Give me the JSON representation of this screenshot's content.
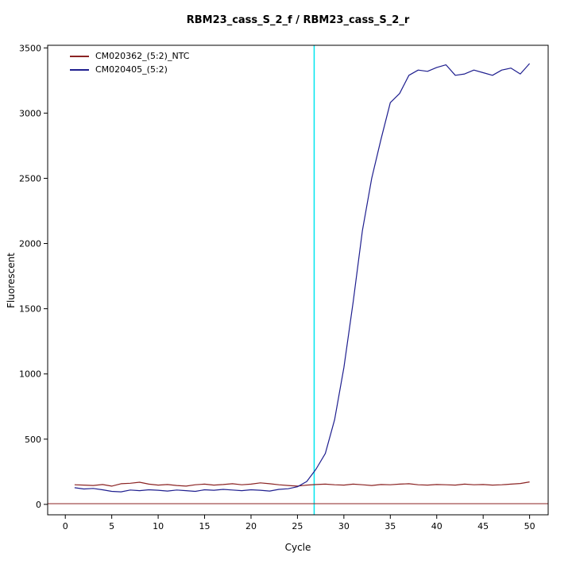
{
  "chart_data": {
    "type": "line",
    "title": "RBM23_cass_S_2_f / RBM23_cass_S_2_r",
    "xlabel": "Cycle",
    "ylabel": "Fluorescent",
    "xlim": [
      -1.9,
      52
    ],
    "ylim": [
      -80,
      3520
    ],
    "xticks": [
      0,
      5,
      10,
      15,
      20,
      25,
      30,
      35,
      40,
      45,
      50
    ],
    "yticks": [
      0,
      500,
      1000,
      1500,
      2000,
      2500,
      3000,
      3500
    ],
    "grid": false,
    "legend_position": "top-left",
    "x": [
      1,
      2,
      3,
      4,
      5,
      6,
      7,
      8,
      9,
      10,
      11,
      12,
      13,
      14,
      15,
      16,
      17,
      18,
      19,
      20,
      21,
      22,
      23,
      24,
      25,
      26,
      27,
      28,
      29,
      30,
      31,
      32,
      33,
      34,
      35,
      36,
      37,
      38,
      39,
      40,
      41,
      42,
      43,
      44,
      45,
      46,
      47,
      48,
      49,
      50
    ],
    "series": [
      {
        "name": "CM020362_(5:2)_NTC",
        "color": "#8b2323",
        "values": [
          150,
          148,
          145,
          152,
          140,
          158,
          162,
          170,
          155,
          148,
          152,
          145,
          140,
          150,
          155,
          148,
          152,
          158,
          150,
          155,
          165,
          158,
          150,
          145,
          140,
          148,
          152,
          155,
          150,
          148,
          155,
          150,
          145,
          152,
          150,
          155,
          158,
          150,
          148,
          152,
          150,
          148,
          155,
          150,
          152,
          148,
          150,
          155,
          160,
          172
        ]
      },
      {
        "name": "CM020405_(5:2)",
        "color": "#1f1f8f",
        "values": [
          128,
          118,
          122,
          112,
          100,
          96,
          110,
          105,
          112,
          108,
          102,
          110,
          105,
          100,
          112,
          108,
          115,
          110,
          105,
          112,
          108,
          102,
          115,
          120,
          135,
          175,
          270,
          390,
          650,
          1050,
          1550,
          2100,
          2500,
          2800,
          3080,
          3150,
          3290,
          3330,
          3320,
          3350,
          3370,
          3290,
          3300,
          3330,
          3310,
          3290,
          3330,
          3345,
          3300,
          3380
        ]
      }
    ],
    "threshold_cycle_line": {
      "x": 26.8,
      "color": "#00e5ee"
    },
    "baseline": {
      "y": 5,
      "color": "#8b2323"
    },
    "axis_color": "#000000",
    "background_color": "#ffffff"
  }
}
